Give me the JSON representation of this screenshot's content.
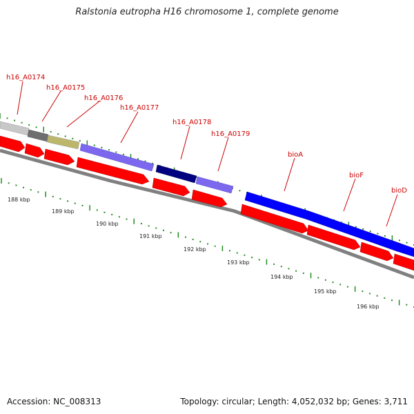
{
  "title": "Ralstonia eutropha H16 chromosome 1, complete genome",
  "accession": "Accession: NC_008313",
  "summary": "Topology: circular; Length: 4,052,032 bp; Genes: 3,711",
  "genes": [
    {
      "id": "h16-a0174",
      "label": "h16_A0174",
      "color": "#c8c8c8"
    },
    {
      "id": "h16-a0175",
      "label": "h16_A0175",
      "color": "#6e6e6e"
    },
    {
      "id": "h16-a0176",
      "label": "h16_A0176",
      "color": "#bdb76b"
    },
    {
      "id": "h16-a0177",
      "label": "h16_A0177",
      "color": "#7b68ee"
    },
    {
      "id": "h16-a0178",
      "label": "h16_A0178",
      "color": "#000080"
    },
    {
      "id": "h16-a0179",
      "label": "h16_A0179",
      "color": "#7b68ee"
    },
    {
      "id": "bioa",
      "label": "bioA",
      "color": "#0000ff"
    },
    {
      "id": "biof",
      "label": "bioF",
      "color": "#0000ff"
    },
    {
      "id": "biod",
      "label": "bioD",
      "color": "#0000ff"
    }
  ],
  "kbp_ticks": [
    "188 kbp",
    "189 kbp",
    "190 kbp",
    "191 kbp",
    "192 kbp",
    "193 kbp",
    "194 kbp",
    "195 kbp",
    "196 kbp"
  ],
  "colors": {
    "cds": "#ff0000",
    "backbone": "#808080",
    "tick": "#228b22",
    "label": "#cc0000"
  }
}
